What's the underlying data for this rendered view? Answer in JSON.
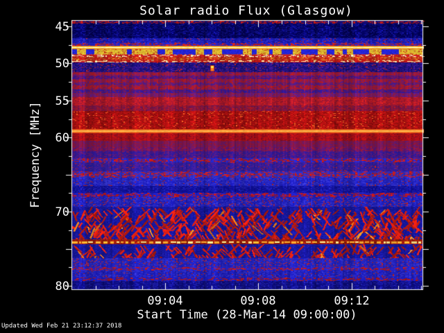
{
  "title": "Solar radio Flux (Glasgow)",
  "footer": {
    "updated": "Updated Wed Feb 21 23:12:37 2018"
  },
  "palette": {
    "background": "#000000",
    "text": "#ffffff",
    "axis": "#ffffff"
  },
  "axes": {
    "x": {
      "label": "Start Time (28-Mar-14 09:00:00)",
      "ticks": [
        {
          "label": "09:04",
          "minute": 4
        },
        {
          "label": "09:08",
          "minute": 8
        },
        {
          "label": "09:12",
          "minute": 12
        }
      ],
      "minor_step_min": 1,
      "range_min": [
        0,
        15.05
      ]
    },
    "y": {
      "label": "Frequency [MHz]",
      "ticks": [
        {
          "label": "45",
          "f": 45
        },
        {
          "label": "50",
          "f": 50
        },
        {
          "label": "55",
          "f": 55
        },
        {
          "label": "60",
          "f": 60
        },
        {
          "label": "70",
          "f": 70
        },
        {
          "label": "80",
          "f": 80
        }
      ],
      "unlabeled_majors": [
        65,
        75
      ],
      "minor_step": 2.5,
      "range_mhz": [
        44.25,
        80.47
      ],
      "inverted": true
    }
  },
  "chart_data": {
    "type": "heatmap",
    "subtype": "radio-spectrogram",
    "title": "Solar radio Flux (Glasgow)",
    "xlabel": "Start Time (28-Mar-14 09:00:00)",
    "ylabel": "Frequency [MHz]",
    "x_range_minutes_after_0900": [
      0,
      15.05
    ],
    "y_range_mhz": [
      44.25,
      80.47
    ],
    "colormap": "blue=weak, red=strong, orange/yellow/white=strongest",
    "bands": [
      {
        "f1": 44.2,
        "f2": 44.6,
        "style": "speckle",
        "base": "#140a60",
        "accent": "#b41616",
        "density": 0.5
      },
      {
        "f1": 44.6,
        "f2": 46.55,
        "style": "noise",
        "base": "#00004e",
        "accent": "#1616a6",
        "pow": 2.2,
        "amp": 0.5
      },
      {
        "f1": 46.55,
        "f2": 47.2,
        "style": "noise",
        "base": "#1212a4",
        "accent": "#3636d2",
        "pow": 2,
        "accent2": "#b02020",
        "d2": 0.05
      },
      {
        "f1": 47.2,
        "f2": 47.62,
        "style": "speckle",
        "base": "#2020b4",
        "accent": "#c22020",
        "density": 0.55
      },
      {
        "f1": 47.62,
        "f2": 48.06,
        "style": "bright",
        "core": "#fffad2",
        "mid": "#ffd83a",
        "edge": "#d83410"
      },
      {
        "f1": 48.06,
        "f2": 48.82,
        "style": "comb",
        "base": "#2222c4",
        "accent": "#e2c434",
        "accent2": "#c23418"
      },
      {
        "f1": 48.82,
        "f2": 49.1,
        "style": "speckle",
        "base": "#b61a1a",
        "accent": "#ffeeb8",
        "density": 0.4
      },
      {
        "f1": 49.1,
        "f2": 49.55,
        "style": "noise",
        "base": "#b41616",
        "accent": "#e2a424",
        "pow": 3,
        "amp": 0.3
      },
      {
        "f1": 49.55,
        "f2": 49.85,
        "style": "speckle",
        "base": "#aa1414",
        "accent": "#ffe8ac",
        "density": 0.35
      },
      {
        "f1": 49.85,
        "f2": 51.15,
        "style": "noise",
        "base": "#100c6e",
        "accent": "#501ea0",
        "pow": 2,
        "accent2": "#b02020",
        "d2": 0.05
      },
      {
        "f1": 51.15,
        "f2": 51.6,
        "style": "noise",
        "base": "#b01818",
        "accent": "#5c1a84",
        "pow": 1.5
      },
      {
        "f1": 51.6,
        "f2": 52.1,
        "style": "noise",
        "base": "#3a1490",
        "accent": "#a01830",
        "pow": 2
      },
      {
        "f1": 52.1,
        "f2": 52.55,
        "style": "noise",
        "base": "#b01818",
        "accent": "#521a8c",
        "pow": 1.6
      },
      {
        "f1": 52.55,
        "f2": 53.0,
        "style": "noise",
        "base": "#401a90",
        "accent": "#aa1a20",
        "pow": 2
      },
      {
        "f1": 53.0,
        "f2": 53.5,
        "style": "noise",
        "base": "#b41818",
        "accent": "#4a1a88",
        "pow": 1.8
      },
      {
        "f1": 53.5,
        "f2": 54.0,
        "style": "noise",
        "base": "#2a18a0",
        "accent": "#9a1830",
        "pow": 2
      },
      {
        "f1": 54.0,
        "f2": 54.5,
        "style": "noise",
        "base": "#8c1a38",
        "accent": "#521aa0",
        "pow": 1.5
      },
      {
        "f1": 54.5,
        "f2": 55.65,
        "style": "noise",
        "base": "#8c1430",
        "accent": "#d42020",
        "pow": 1.3,
        "amp": 0.3
      },
      {
        "f1": 55.65,
        "f2": 56.4,
        "style": "noise",
        "base": "#641450",
        "accent": "#ba1818",
        "pow": 1.5
      },
      {
        "f1": 56.4,
        "f2": 58.85,
        "style": "noise",
        "base": "#c41414",
        "accent": "#7a0a0a",
        "pow": 1.5,
        "amp": 0.35,
        "accent2": "#e85a20",
        "d2": 0.06
      },
      {
        "f1": 58.85,
        "f2": 59.4,
        "style": "bright",
        "core": "#ffcc66",
        "mid": "#ff9228",
        "edge": "#cc2810"
      },
      {
        "f1": 59.4,
        "f2": 60.4,
        "style": "noise",
        "base": "#bc1212",
        "accent": "#7c0c20",
        "pow": 1.4,
        "amp": 0.3
      },
      {
        "f1": 60.4,
        "f2": 61.3,
        "style": "noise",
        "base": "#8e1432",
        "accent": "#561a76",
        "pow": 1.4
      },
      {
        "f1": 61.3,
        "f2": 61.85,
        "style": "noise",
        "base": "#50157c",
        "accent": "#a81824",
        "pow": 1.7
      },
      {
        "f1": 61.85,
        "f2": 62.75,
        "style": "noise",
        "base": "#2a1898",
        "accent": "#7c1a60",
        "pow": 2.2
      },
      {
        "f1": 62.75,
        "f2": 63.3,
        "style": "speckle",
        "base": "#2222b4",
        "accent": "#c01818",
        "density": 0.55
      },
      {
        "f1": 63.3,
        "f2": 64.6,
        "style": "noise",
        "base": "#241c9a",
        "accent": "#5c1c90",
        "pow": 2,
        "accent2": "#a82020",
        "d2": 0.05
      },
      {
        "f1": 64.6,
        "f2": 65.4,
        "style": "speckle",
        "base": "#2828ae",
        "accent": "#c41c1c",
        "density": 0.5
      },
      {
        "f1": 65.4,
        "f2": 66.5,
        "style": "noise",
        "base": "#1a1ab6",
        "accent": "#3e3ed0",
        "pow": 2,
        "accent2": "#a02020",
        "d2": 0.05
      },
      {
        "f1": 66.5,
        "f2": 67.45,
        "style": "noise",
        "base": "#0c0c8e",
        "accent": "#2828c0",
        "pow": 2.2
      },
      {
        "f1": 67.45,
        "f2": 68.05,
        "style": "speckle",
        "base": "#1c1cae",
        "accent": "#c01818",
        "density": 0.5
      },
      {
        "f1": 68.05,
        "f2": 69.3,
        "style": "noise",
        "base": "#1818b0",
        "accent": "#3a3acc",
        "pow": 2,
        "accent2": "#b42020",
        "d2": 0.1
      },
      {
        "f1": 69.3,
        "f2": 73.7,
        "style": "streaks",
        "base": "#2020b2",
        "accent": "#cc1c10",
        "accent2": "#ff8820",
        "density": 0.6
      },
      {
        "f1": 73.7,
        "f2": 74.35,
        "style": "brightdash",
        "base": "#c02410",
        "accent": "#ffb030",
        "core": "#ffe88a"
      },
      {
        "f1": 74.35,
        "f2": 76.25,
        "style": "streaks",
        "base": "#2020b2",
        "accent": "#c81c12",
        "accent2": "#ff8820",
        "density": 0.42
      },
      {
        "f1": 76.25,
        "f2": 77.45,
        "style": "noise",
        "base": "#1c1cb2",
        "accent": "#3636cc",
        "pow": 2,
        "accent2": "#b02020",
        "d2": 0.1
      },
      {
        "f1": 77.45,
        "f2": 77.95,
        "style": "speckle",
        "base": "#2020b4",
        "accent": "#bc1818",
        "density": 0.45
      },
      {
        "f1": 77.95,
        "f2": 78.85,
        "style": "noise",
        "base": "#1818ae",
        "accent": "#3838d0",
        "pow": 2,
        "accent2": "#a02020",
        "d2": 0.04
      },
      {
        "f1": 78.85,
        "f2": 79.35,
        "style": "speckle",
        "base": "#1a1aae",
        "accent": "#b01818",
        "density": 0.4
      },
      {
        "f1": 79.35,
        "f2": 80.5,
        "style": "noise",
        "base": "#0a0a76",
        "accent": "#2424b6",
        "pow": 2.4,
        "amp": 0.4
      }
    ],
    "features": [
      {
        "type": "point-burst",
        "t_min": 5.95,
        "f1": 50.35,
        "f2": 50.95,
        "top_color": "#ffe850",
        "body_color": "#ff8020",
        "fringe_color": "#c03010"
      }
    ]
  }
}
